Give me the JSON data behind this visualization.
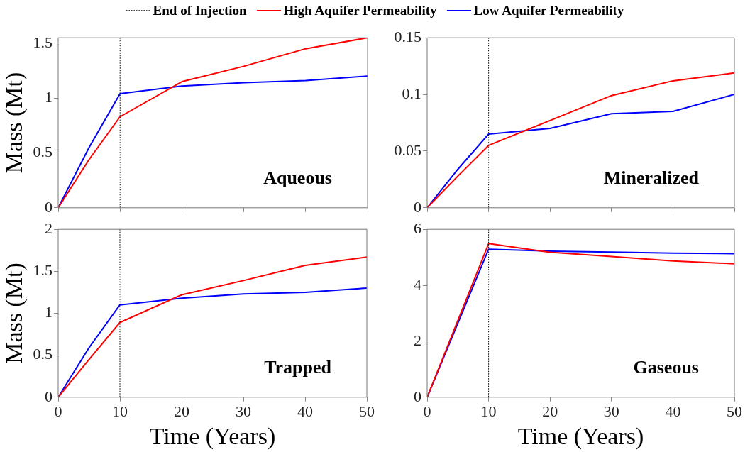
{
  "chart_data": [
    {
      "type": "line",
      "annotations": [
        "Aqueous"
      ],
      "ylabel": "Mass (Mt)",
      "x": [
        0,
        5,
        10,
        20,
        30,
        40,
        50
      ],
      "xlim": [
        0,
        50
      ],
      "xticks": [
        0,
        10,
        20,
        30,
        40,
        50
      ],
      "ylim": [
        0,
        1.55
      ],
      "yticks": [
        0,
        0.5,
        1,
        1.5
      ],
      "tick_labels": "y",
      "grid": false,
      "legend": "top",
      "marker": "none",
      "line_style": "solid",
      "ref_lines": [
        {
          "axis": "x",
          "value": 10,
          "label": "End of Injection",
          "color": "#000000",
          "line_style": "dotted"
        }
      ],
      "series": [
        {
          "name": "High Aquifer Permeability",
          "color": "#ff0000",
          "values": [
            0,
            0.44,
            0.83,
            1.15,
            1.29,
            1.45,
            1.55
          ]
        },
        {
          "name": "Low Aquifer Permeability",
          "color": "#0000ff",
          "values": [
            0,
            0.55,
            1.04,
            1.11,
            1.14,
            1.16,
            1.2
          ]
        }
      ]
    },
    {
      "type": "line",
      "annotations": [
        "Mineralized"
      ],
      "x": [
        0,
        5,
        10,
        20,
        30,
        40,
        50
      ],
      "xlim": [
        0,
        50
      ],
      "xticks": [
        0,
        10,
        20,
        30,
        40,
        50
      ],
      "ylim": [
        0,
        0.15
      ],
      "yticks": [
        0,
        0.05,
        0.1,
        0.15
      ],
      "tick_labels": "y",
      "grid": false,
      "marker": "none",
      "line_style": "solid",
      "ref_lines": [
        {
          "axis": "x",
          "value": 10,
          "color": "#000000",
          "line_style": "dotted"
        }
      ],
      "series": [
        {
          "color": "#ff0000",
          "values": [
            0,
            0.028,
            0.055,
            0.077,
            0.099,
            0.112,
            0.119
          ]
        },
        {
          "color": "#0000ff",
          "values": [
            0,
            0.034,
            0.065,
            0.07,
            0.083,
            0.085,
            0.1
          ]
        }
      ]
    },
    {
      "type": "line",
      "annotations": [
        "Trapped"
      ],
      "xlabel": "Time (Years)",
      "ylabel": "Mass (Mt)",
      "x": [
        0,
        5,
        10,
        20,
        30,
        40,
        50
      ],
      "xlim": [
        0,
        50
      ],
      "xticks": [
        0,
        10,
        20,
        30,
        40,
        50
      ],
      "ylim": [
        0,
        2
      ],
      "yticks": [
        0,
        0.5,
        1,
        1.5,
        2
      ],
      "grid": false,
      "marker": "none",
      "line_style": "solid",
      "ref_lines": [
        {
          "axis": "x",
          "value": 10,
          "color": "#000000",
          "line_style": "dotted"
        }
      ],
      "series": [
        {
          "color": "#ff0000",
          "values": [
            0,
            0.45,
            0.89,
            1.22,
            1.39,
            1.57,
            1.67
          ]
        },
        {
          "color": "#0000ff",
          "values": [
            0,
            0.59,
            1.1,
            1.18,
            1.23,
            1.25,
            1.3
          ]
        }
      ]
    },
    {
      "type": "line",
      "annotations": [
        "Gaseous"
      ],
      "xlabel": "Time (Years)",
      "x": [
        0,
        10,
        20,
        30,
        40,
        50
      ],
      "xlim": [
        0,
        50
      ],
      "xticks": [
        0,
        10,
        20,
        30,
        40,
        50
      ],
      "ylim": [
        0,
        6
      ],
      "yticks": [
        0,
        2,
        4,
        6
      ],
      "grid": false,
      "marker": "none",
      "line_style": "solid",
      "ref_lines": [
        {
          "axis": "x",
          "value": 10,
          "color": "#000000",
          "line_style": "dotted"
        }
      ],
      "series": [
        {
          "color": "#ff0000",
          "values": [
            0,
            5.49,
            5.18,
            5.03,
            4.87,
            4.77
          ]
        },
        {
          "color": "#0000ff",
          "values": [
            0,
            5.29,
            5.22,
            5.19,
            5.15,
            5.13
          ]
        }
      ]
    }
  ]
}
